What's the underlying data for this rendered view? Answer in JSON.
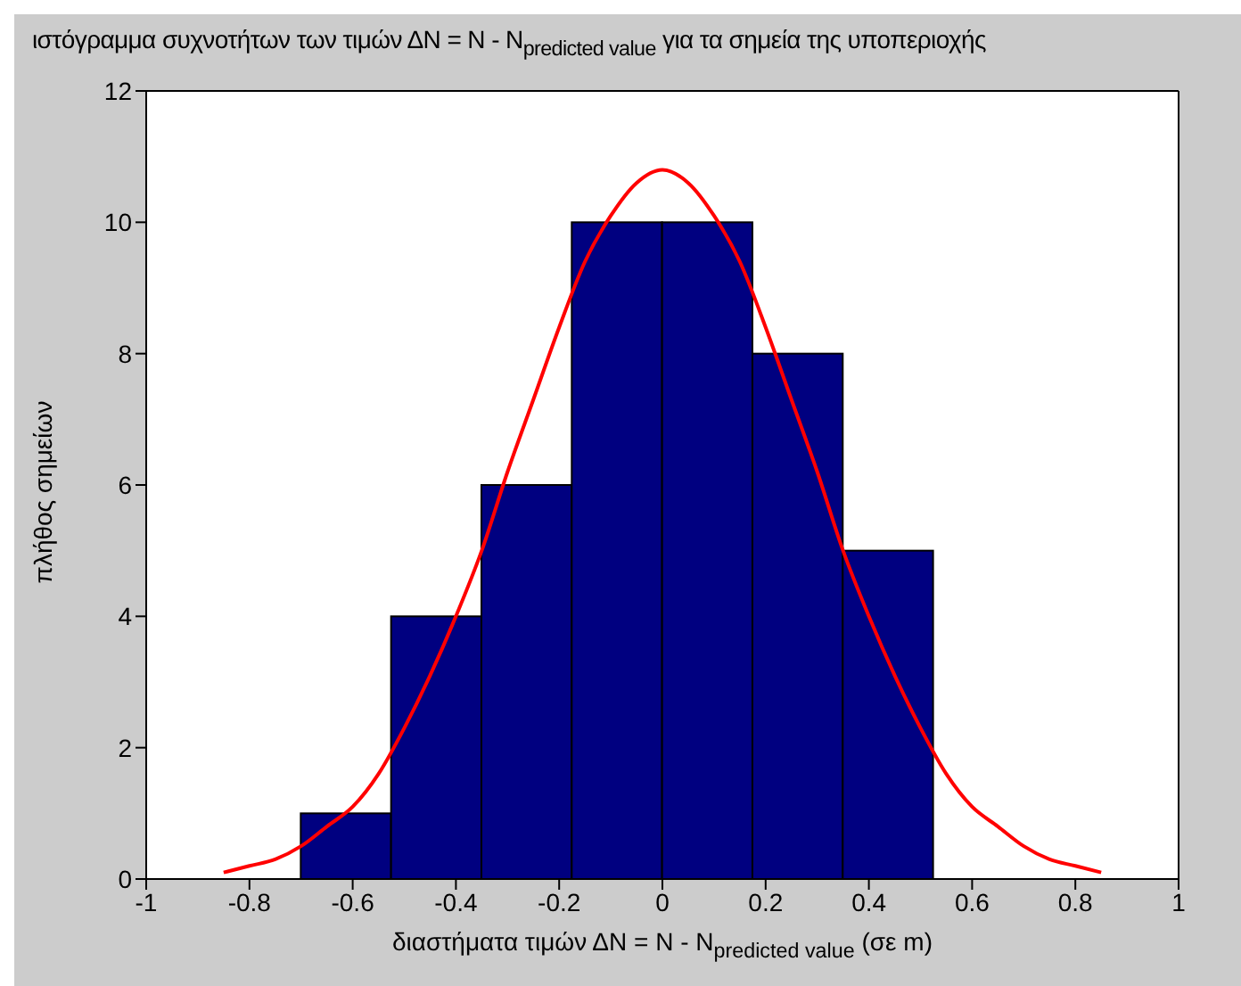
{
  "chart_data": {
    "type": "histogram",
    "title": "ιστόγραμμα συχνοτήτων των τιμών ΔΝ = Ν - N$_{predicted value}$ για τα σημεία της υποπεριοχής",
    "xlabel": "διαστήματα τιμών ΔΝ = Ν - N$_{predicted value}$  (σε m)",
    "ylabel": "πλήθος σημείων",
    "bins": [
      -0.7,
      -0.525,
      -0.35,
      -0.175,
      0,
      0.175,
      0.35,
      0.525
    ],
    "values": [
      1,
      4,
      6,
      10,
      10,
      8,
      5
    ],
    "color": "#000080",
    "series": [
      {
        "type": "line",
        "color": "#ff0000",
        "x": [
          -0.85,
          -0.8,
          -0.75,
          -0.7,
          -0.65,
          -0.6,
          -0.55,
          -0.5,
          -0.45,
          -0.4,
          -0.35,
          -0.3,
          -0.25,
          -0.2,
          -0.15,
          -0.1,
          -0.05,
          0,
          0.05,
          0.1,
          0.15,
          0.2,
          0.25,
          0.3,
          0.35,
          0.4,
          0.45,
          0.5,
          0.55,
          0.6,
          0.65,
          0.7,
          0.75,
          0.8,
          0.85
        ],
        "values": [
          0.1,
          0.2,
          0.3,
          0.5,
          0.8,
          1.1,
          1.6,
          2.3,
          3.1,
          4,
          5,
          6.2,
          7.3,
          8.4,
          9.4,
          10.1,
          10.6,
          10.8,
          10.6,
          10.1,
          9.4,
          8.4,
          7.3,
          6.2,
          5,
          4,
          3.1,
          2.3,
          1.6,
          1.1,
          0.8,
          0.5,
          0.3,
          0.2,
          0.1
        ]
      }
    ],
    "xlim": [
      -1,
      1
    ],
    "xticks": [
      -1,
      -0.8,
      -0.6,
      -0.4,
      -0.2,
      0,
      0.2,
      0.4,
      0.6,
      0.8,
      1
    ],
    "ylim": [
      0,
      12
    ],
    "yticks": [
      0,
      2,
      4,
      6,
      8,
      10,
      12
    ],
    "grid": false
  }
}
